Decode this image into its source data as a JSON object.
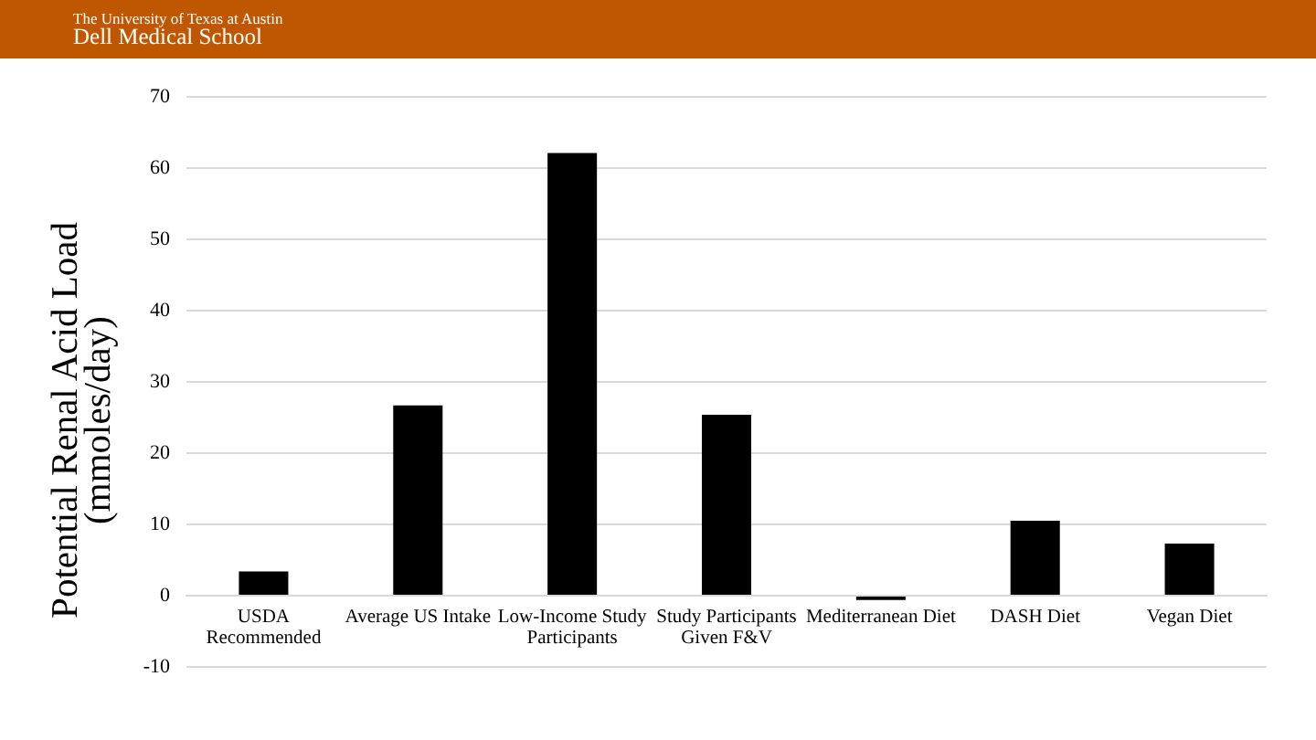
{
  "chart_data": {
    "type": "bar",
    "annotations": [
      "The University of Texas at Austin",
      "Dell Medical School"
    ],
    "ylabel": "Potential Renal Acid Load (mmoles/day)",
    "categories": [
      "USDA Recommended",
      "Average US Intake",
      "Low-Income Study Participants",
      "Study Participants Given F&V",
      "Mediterranean Diet",
      "DASH Diet",
      "Vegan Diet"
    ],
    "values": [
      3.4,
      26.7,
      62.1,
      25.4,
      -0.6,
      10.5,
      7.3
    ],
    "color": "#000000",
    "ylim": [
      -10,
      70
    ],
    "yticks": [
      -10,
      0,
      10,
      20,
      30,
      40,
      50,
      60,
      70
    ],
    "grid": "y"
  }
}
